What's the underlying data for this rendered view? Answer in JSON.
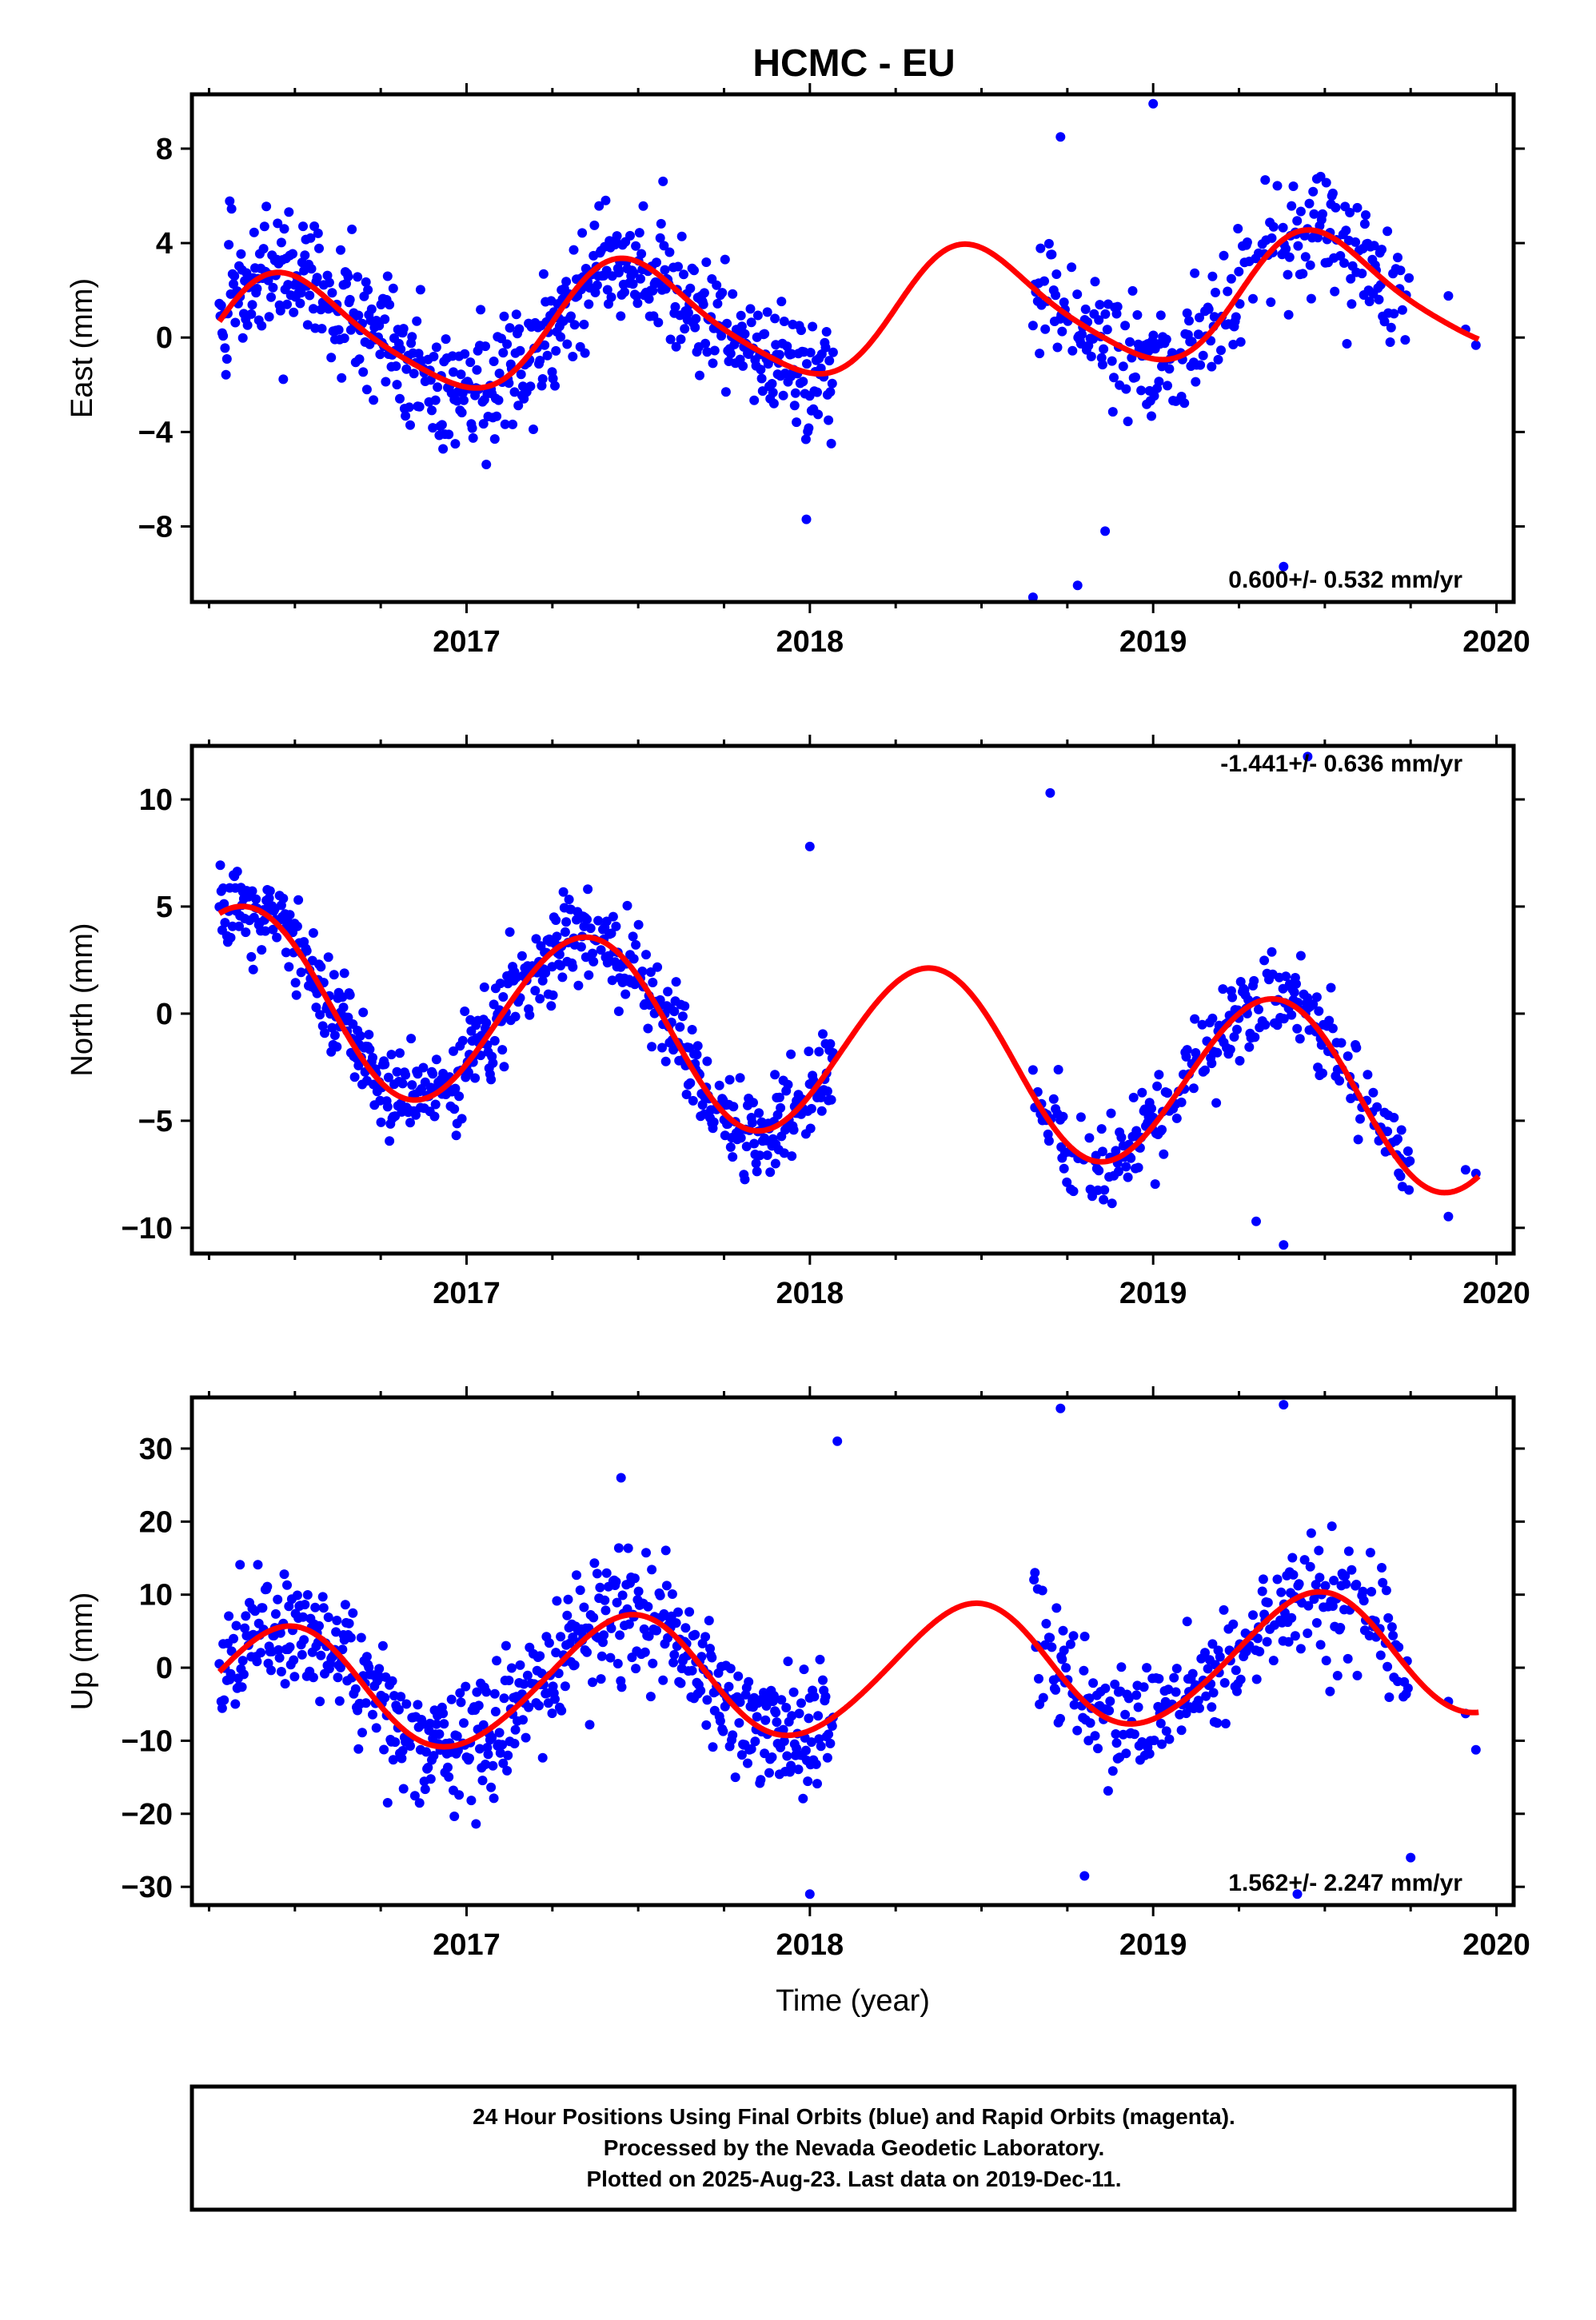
{
  "title": "HCMC - EU",
  "footer": {
    "lines": [
      "24 Hour Positions Using Final Orbits (blue) and Rapid Orbits (magenta).",
      "Processed by the Nevada Geodetic Laboratory.",
      "Plotted on 2025-Aug-23. Last data on 2019-Dec-11."
    ]
  },
  "colors": {
    "data_points": "#0000ff",
    "model_curve": "#ff0000",
    "frame": "#000000"
  },
  "chart_data": [
    {
      "type": "scatter",
      "ylabel": "East (mm)",
      "xlabel": "",
      "xlim": [
        2016.2,
        2020.05
      ],
      "ylim": [
        -11.2,
        10.3
      ],
      "xticks": [
        2017,
        2018,
        2019,
        2020
      ],
      "yticks": [
        -8,
        -4,
        0,
        4,
        8
      ],
      "yticklabels": [
        "−8",
        "−4",
        "0",
        "4",
        "8"
      ],
      "rate_annotation": "0.600+/- 0.532 mm/yr",
      "annotation_position": "bottom-right",
      "model": {
        "trend": 0.6,
        "offset": 0.9,
        "c1": -2.5,
        "s1": 0.3,
        "c2": 0.1,
        "s2": -0.4
      },
      "data": {
        "noise": 1.3,
        "seed": 11
      },
      "outliers": [
        [
          2019.0,
          9.9
        ],
        [
          2018.73,
          8.5
        ],
        [
          2018.65,
          -11.0
        ],
        [
          2018.78,
          -10.5
        ],
        [
          2017.99,
          -7.7
        ],
        [
          2019.38,
          -9.7
        ],
        [
          2018.86,
          -8.2
        ]
      ]
    },
    {
      "type": "scatter",
      "ylabel": "North (mm)",
      "xlabel": "",
      "xlim": [
        2016.2,
        2020.05
      ],
      "ylim": [
        -11.2,
        12.5
      ],
      "xticks": [
        2017,
        2018,
        2019,
        2020
      ],
      "yticks": [
        -10,
        -5,
        0,
        5,
        10
      ],
      "yticklabels": [
        "−10",
        "−5",
        "0",
        "5",
        "10"
      ],
      "rate_annotation": "-1.441+/- 0.636 mm/yr",
      "annotation_position": "top-right",
      "model": {
        "trend": -1.441,
        "offset": -1.5,
        "c1": -2.4,
        "s1": 3.4,
        "c2": 0.1,
        "s2": 0.0
      },
      "data": {
        "noise": 1.0,
        "seed": 23
      },
      "outliers": [
        [
          2018.7,
          10.3
        ],
        [
          2019.45,
          12.0
        ],
        [
          2018.76,
          -8.2
        ],
        [
          2018.0,
          7.8
        ],
        [
          2019.38,
          -10.8
        ],
        [
          2017.9,
          -7.0
        ],
        [
          2019.3,
          -9.7
        ]
      ]
    },
    {
      "type": "scatter",
      "ylabel": "Up (mm)",
      "xlabel": "Time (year)",
      "xlim": [
        2016.2,
        2020.05
      ],
      "ylim": [
        -32.5,
        37.0
      ],
      "xticks": [
        2017,
        2018,
        2019,
        2020
      ],
      "yticks": [
        -30,
        -20,
        -10,
        0,
        10,
        20,
        30
      ],
      "yticklabels": [
        "−30",
        "−20",
        "−10",
        "0",
        "10",
        "20",
        "30"
      ],
      "rate_annotation": "1.562+/- 2.247 mm/yr",
      "annotation_position": "bottom-right",
      "model": {
        "trend": 1.562,
        "offset": -0.8,
        "c1": -8.3,
        "s1": 2.0,
        "c2": 0.5,
        "s2": 0.4
      },
      "data": {
        "noise": 4.2,
        "seed": 37
      },
      "outliers": [
        [
          2018.73,
          35.5
        ],
        [
          2019.38,
          36.0
        ],
        [
          2018.08,
          31.0
        ],
        [
          2017.45,
          26.0
        ],
        [
          2019.42,
          -31.0
        ],
        [
          2018.0,
          -31.0
        ],
        [
          2018.8,
          -28.5
        ],
        [
          2019.75,
          -26.0
        ]
      ]
    }
  ]
}
